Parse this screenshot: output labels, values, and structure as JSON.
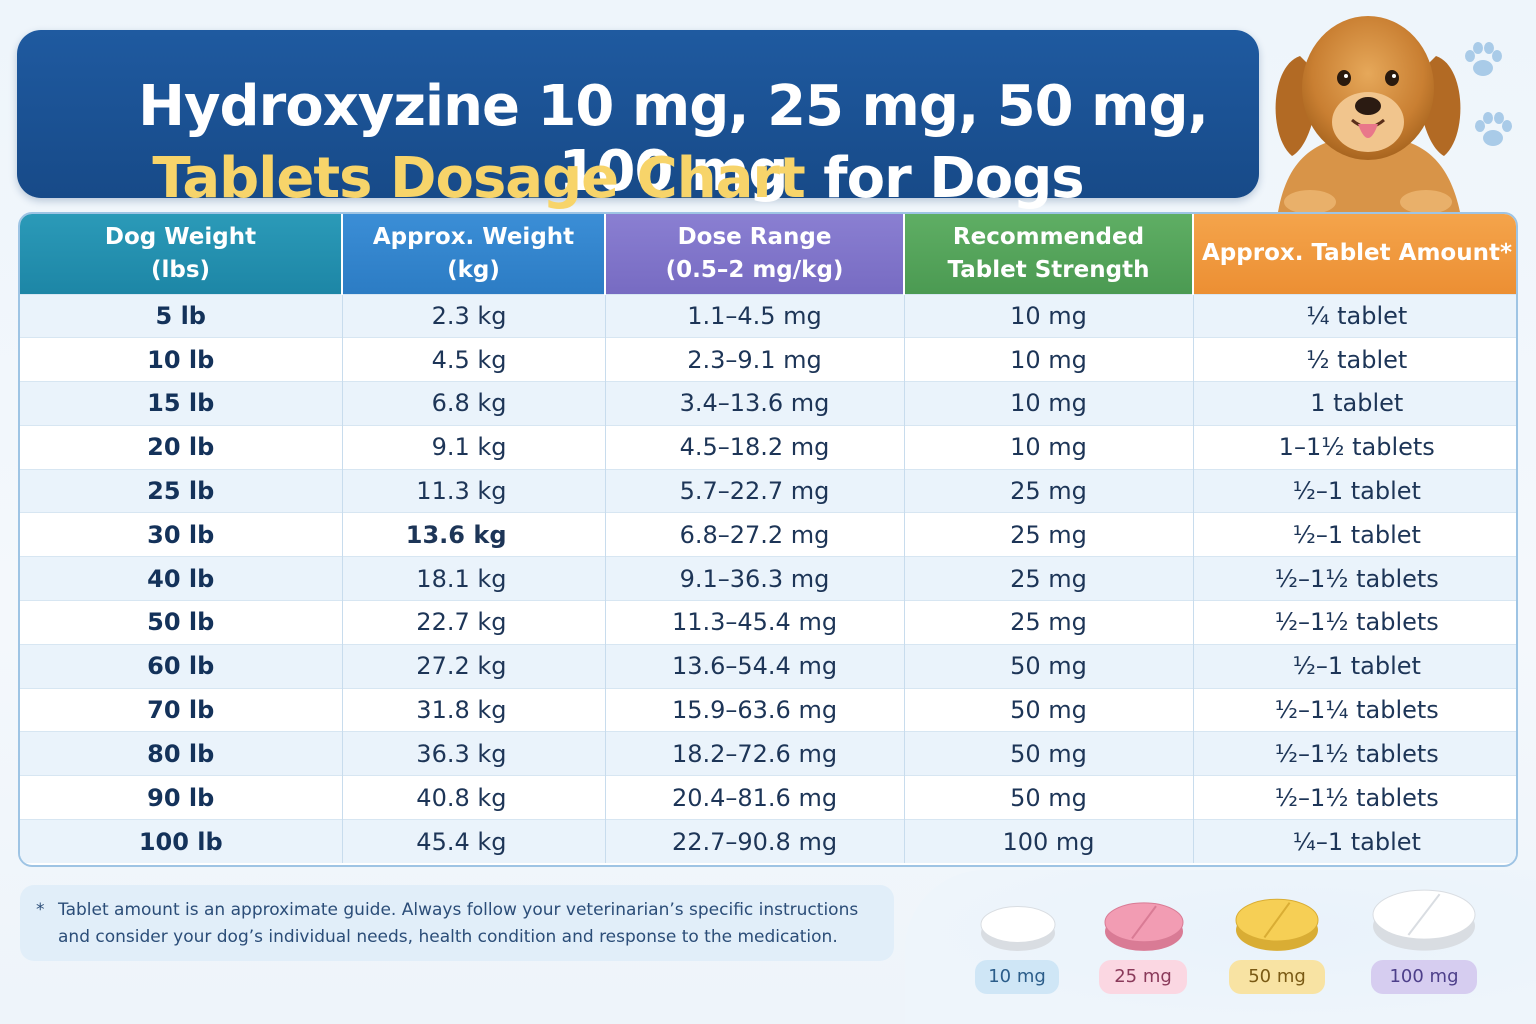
{
  "title": {
    "line1": "Hydroxyzine 10 mg, 25 mg, 50 mg, 100 mg",
    "line2_highlight": "Tablets Dosage Chart",
    "line2_rest": " for Dogs"
  },
  "colors": {
    "banner": "#1f5aa0",
    "highlight": "#f7d46a",
    "col_weight_lbs": "#2b9ab8",
    "col_weight_kg": "#3b8ed6",
    "col_dose_range": "#8a7fd2",
    "col_strength": "#5fae64",
    "col_amount": "#f4a44b"
  },
  "chart_data": {
    "type": "table",
    "columns": [
      {
        "line1": "Dog Weight",
        "line2": "(lbs)"
      },
      {
        "line1": "Approx. Weight",
        "line2": "(kg)"
      },
      {
        "line1": "Dose Range",
        "line2": "(0.5–2 mg/kg)"
      },
      {
        "line1": "Recommended",
        "line2": "Tablet Strength"
      },
      {
        "line1": "Approx. Tablet Amount*",
        "line2": ""
      }
    ],
    "rows": [
      [
        "5 lb",
        "2.3 kg",
        "1.1–4.5 mg",
        "10 mg",
        "¼ tablet"
      ],
      [
        "10 lb",
        "4.5 kg",
        "2.3–9.1 mg",
        "10 mg",
        "½ tablet"
      ],
      [
        "15 lb",
        "6.8 kg",
        "3.4–13.6 mg",
        "10 mg",
        "1 tablet"
      ],
      [
        "20 lb",
        "9.1 kg",
        "4.5–18.2 mg",
        "10 mg",
        "1–1½ tablets"
      ],
      [
        "25 lb",
        "11.3 kg",
        "5.7–22.7 mg",
        "25 mg",
        "½–1 tablet"
      ],
      [
        "30 lb",
        "13.6 kg",
        "6.8–27.2 mg",
        "25 mg",
        "½–1 tablet"
      ],
      [
        "40 lb",
        "18.1 kg",
        "9.1–36.3 mg",
        "25 mg",
        "½–1½ tablets"
      ],
      [
        "50 lb",
        "22.7 kg",
        "11.3–45.4 mg",
        "25 mg",
        "½–1½ tablets"
      ],
      [
        "60 lb",
        "27.2 kg",
        "13.6–54.4 mg",
        "50 mg",
        "½–1 tablet"
      ],
      [
        "70 lb",
        "31.8 kg",
        "15.9–63.6 mg",
        "50 mg",
        "½–1¼ tablets"
      ],
      [
        "80 lb",
        "36.3 kg",
        "18.2–72.6 mg",
        "50 mg",
        "½–1½ tablets"
      ],
      [
        "90 lb",
        "40.8 kg",
        "20.4–81.6 mg",
        "50 mg",
        "½–1½ tablets"
      ],
      [
        "100 lb",
        "45.4 kg",
        "22.7–90.8 mg",
        "100 mg",
        "¼–1 tablet"
      ]
    ],
    "bold_kg_row": 5
  },
  "footnote": {
    "marker": "*",
    "text": "Tablet amount is an approximate guide. Always follow your veterinarian’s specific instructions and consider your dog’s individual needs, health condition and response to the medication."
  },
  "tablets": [
    {
      "label": "10 mg",
      "color": "#ffffff",
      "label_bg": "#cfe6f6",
      "label_color": "#2b5d8a",
      "icon": "round-white-tablet-icon"
    },
    {
      "label": "25 mg",
      "color": "#f29cb3",
      "label_bg": "#fbd7e2",
      "label_color": "#8a3a5a",
      "icon": "round-pink-tablet-icon"
    },
    {
      "label": "50 mg",
      "color": "#f6cf55",
      "label_bg": "#f8e3a3",
      "label_color": "#7a5a14",
      "icon": "round-yellow-tablet-icon"
    },
    {
      "label": "100 mg",
      "color": "#ffffff",
      "label_bg": "#d6cdf0",
      "label_color": "#4d3f8a",
      "icon": "round-white-large-tablet-icon"
    }
  ]
}
